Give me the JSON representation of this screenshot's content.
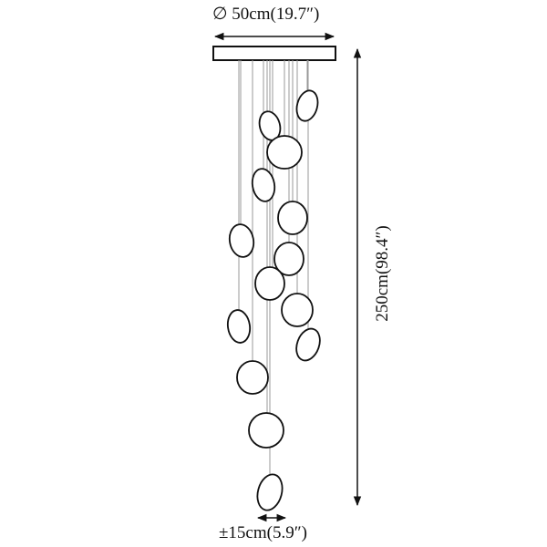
{
  "dimensions": {
    "diameter": "∅ 50cm(19.7″)",
    "height": "250cm(98.4″)",
    "spread": "±15cm(5.9″)"
  },
  "colors": {
    "line": "#111111",
    "wire": "#999999"
  }
}
